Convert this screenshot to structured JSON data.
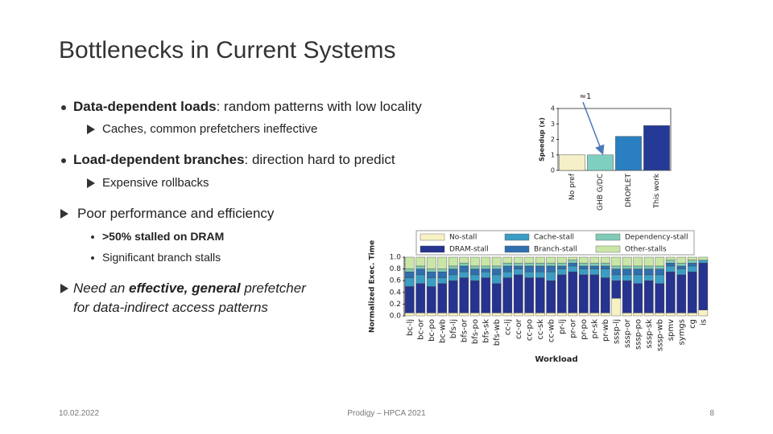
{
  "slide": {
    "title": "Bottlenecks in Current Systems",
    "bullets": [
      {
        "bold": "Data-dependent loads",
        "text": ": random patterns with low locality"
      },
      {
        "text": "Caches, common prefetchers ineffective"
      },
      {
        "bold": "Load-dependent branches",
        "text": ": direction hard to predict"
      },
      {
        "text": "Expensive rollbacks"
      },
      {
        "text": "Poor performance and efficiency"
      },
      {
        "text": ">50% stalled on DRAM"
      },
      {
        "text": "Significant branch stalls"
      },
      {
        "text": "Need an ",
        "bold": "effective, general",
        "tail": " prefetcher"
      },
      {
        "text": "for data-indirect access patterns"
      }
    ],
    "footer": {
      "date": "10.02.2022",
      "center": "Prodigy – HPCA 2021",
      "page": "8"
    }
  },
  "chart_data": [
    {
      "type": "bar",
      "ylabel": "Speedup (x)",
      "annotation": "≈1",
      "categories": [
        "No pref",
        "GHB G/DC",
        "DROPLET",
        "This work"
      ],
      "values": [
        1,
        1,
        2.2,
        2.9
      ],
      "colors": [
        "#f5f0c8",
        "#7fcfc0",
        "#2a7fc0",
        "#253a96"
      ],
      "ylim": [
        0,
        4
      ],
      "yticks": [
        0,
        1,
        2,
        3,
        4
      ]
    },
    {
      "type": "stacked_bar",
      "ylabel": "Normalized Exec. Time",
      "xlabel": "Workload",
      "categories": [
        "bc-lj",
        "bc-or",
        "bc-po",
        "bc-wb",
        "bfs-lj",
        "bfs-or",
        "bfs-po",
        "bfs-sk",
        "bfs-wb",
        "cc-lj",
        "cc-or",
        "cc-po",
        "cc-sk",
        "cc-wb",
        "pr-lj",
        "pr-or",
        "pr-po",
        "pr-sk",
        "pr-wb",
        "sssp-lj",
        "sssp-or",
        "sssp-po",
        "sssp-sk",
        "sssp-wb",
        "spmv",
        "symgs",
        "cg",
        "is"
      ],
      "series": [
        {
          "name": "No-stall",
          "color": "#f7f2c4",
          "values": [
            0.05,
            0.05,
            0.05,
            0.05,
            0.05,
            0.05,
            0.05,
            0.05,
            0.05,
            0.05,
            0.05,
            0.05,
            0.05,
            0.05,
            0.05,
            0.05,
            0.05,
            0.05,
            0.05,
            0.3,
            0.05,
            0.05,
            0.05,
            0.05,
            0.05,
            0.05,
            0.05,
            0.1
          ]
        },
        {
          "name": "DRAM-stall",
          "color": "#26338f",
          "values": [
            0.45,
            0.5,
            0.45,
            0.5,
            0.55,
            0.6,
            0.55,
            0.6,
            0.5,
            0.6,
            0.65,
            0.6,
            0.6,
            0.55,
            0.65,
            0.7,
            0.65,
            0.65,
            0.6,
            0.3,
            0.55,
            0.5,
            0.55,
            0.5,
            0.7,
            0.65,
            0.7,
            0.8
          ]
        },
        {
          "name": "Cache-stall",
          "color": "#3b9cc4",
          "values": [
            0.15,
            0.15,
            0.15,
            0.1,
            0.1,
            0.1,
            0.1,
            0.1,
            0.15,
            0.1,
            0.1,
            0.1,
            0.1,
            0.15,
            0.1,
            0.1,
            0.1,
            0.1,
            0.15,
            0.1,
            0.1,
            0.15,
            0.1,
            0.15,
            0.1,
            0.1,
            0.1,
            0.05
          ]
        },
        {
          "name": "Branch-stall",
          "color": "#2f6fae",
          "values": [
            0.1,
            0.1,
            0.1,
            0.1,
            0.1,
            0.1,
            0.1,
            0.05,
            0.1,
            0.1,
            0.05,
            0.1,
            0.1,
            0.1,
            0.05,
            0.05,
            0.05,
            0.05,
            0.05,
            0.1,
            0.1,
            0.1,
            0.1,
            0.1,
            0.05,
            0.05,
            0.05,
            0
          ]
        },
        {
          "name": "Dependency-stall",
          "color": "#7fcbb8",
          "values": [
            0.05,
            0.05,
            0.05,
            0.05,
            0.05,
            0.05,
            0.05,
            0.05,
            0.05,
            0.05,
            0.05,
            0.05,
            0.05,
            0.05,
            0.05,
            0.05,
            0.05,
            0.05,
            0.05,
            0.05,
            0.05,
            0.05,
            0.05,
            0.05,
            0.05,
            0.05,
            0.05,
            0
          ]
        },
        {
          "name": "Other-stalls",
          "color": "#c9e6a6",
          "values": [
            0.2,
            0.15,
            0.2,
            0.2,
            0.15,
            0.1,
            0.15,
            0.15,
            0.15,
            0.1,
            0.1,
            0.1,
            0.1,
            0.1,
            0.1,
            0.05,
            0.1,
            0.1,
            0.1,
            0.15,
            0.15,
            0.15,
            0.15,
            0.15,
            0.05,
            0.1,
            0.05,
            0.05
          ]
        }
      ],
      "ylim": [
        0,
        1
      ],
      "yticks": [
        {
          "value": 0,
          "label": "0.0"
        },
        0.2,
        0.4,
        0.6,
        0.8,
        {
          "value": 1,
          "label": "1.0"
        }
      ]
    }
  ]
}
